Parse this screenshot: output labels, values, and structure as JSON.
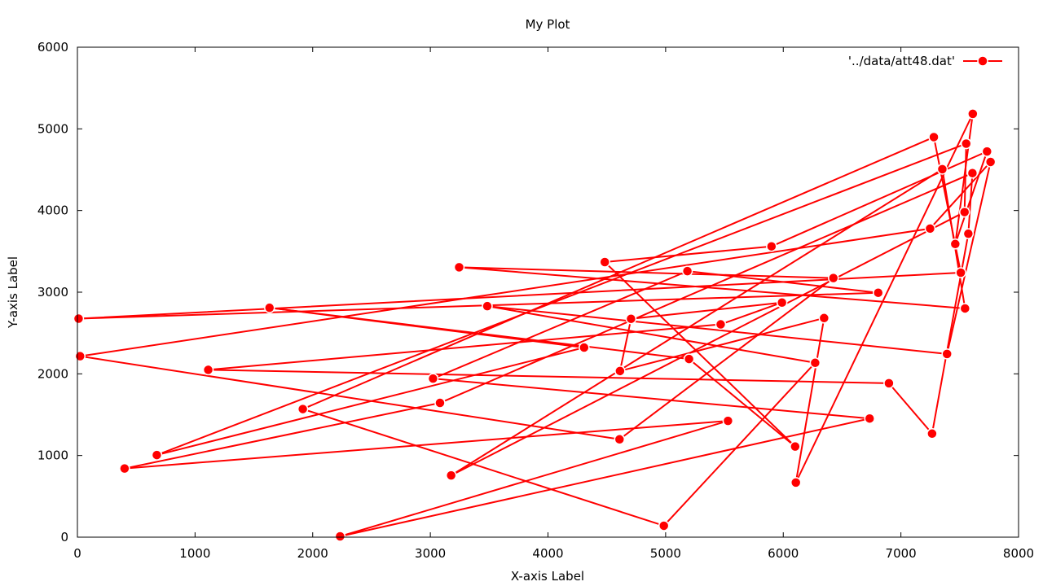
{
  "chart_data": {
    "type": "line",
    "title": "My Plot",
    "xlabel": "X-axis Label",
    "ylabel": "Y-axis Label",
    "xlim": [
      0,
      8000
    ],
    "ylim": [
      0,
      6000
    ],
    "x_ticks": [
      0,
      1000,
      2000,
      3000,
      4000,
      5000,
      6000,
      7000,
      8000
    ],
    "y_ticks": [
      0,
      1000,
      2000,
      3000,
      4000,
      5000,
      6000
    ],
    "grid": false,
    "legend_position": "top-right",
    "series_color": "#ff0000",
    "series": [
      {
        "name": "'../data/att48.dat'",
        "marker": "filled-circle",
        "points": [
          [
            6734,
            1453
          ],
          [
            2233,
            10
          ],
          [
            5530,
            1424
          ],
          [
            401,
            841
          ],
          [
            3082,
            1644
          ],
          [
            7608,
            4458
          ],
          [
            7573,
            3716
          ],
          [
            7265,
            1268
          ],
          [
            6898,
            1885
          ],
          [
            1112,
            2049
          ],
          [
            5468,
            2606
          ],
          [
            5989,
            2873
          ],
          [
            4706,
            2674
          ],
          [
            4612,
            2035
          ],
          [
            6347,
            2683
          ],
          [
            6107,
            669
          ],
          [
            7611,
            5184
          ],
          [
            7462,
            3590
          ],
          [
            7732,
            4723
          ],
          [
            5900,
            3561
          ],
          [
            4483,
            3369
          ],
          [
            6101,
            1110
          ],
          [
            5199,
            2182
          ],
          [
            1633,
            2809
          ],
          [
            4307,
            2322
          ],
          [
            675,
            1006
          ],
          [
            7555,
            4819
          ],
          [
            7541,
            3981
          ],
          [
            3177,
            756
          ],
          [
            7352,
            4506
          ],
          [
            7545,
            2801
          ],
          [
            3245,
            3305
          ],
          [
            6426,
            3173
          ],
          [
            4608,
            1198
          ],
          [
            23,
            2216
          ],
          [
            7248,
            3779
          ],
          [
            7762,
            4595
          ],
          [
            7392,
            2244
          ],
          [
            3484,
            2829
          ],
          [
            6271,
            2135
          ],
          [
            4985,
            140
          ],
          [
            1916,
            1569
          ],
          [
            7280,
            4899
          ],
          [
            7509,
            3239
          ],
          [
            10,
            2676
          ],
          [
            6807,
            2993
          ],
          [
            5185,
            3258
          ],
          [
            3023,
            1942
          ]
        ],
        "closed": true
      }
    ]
  }
}
